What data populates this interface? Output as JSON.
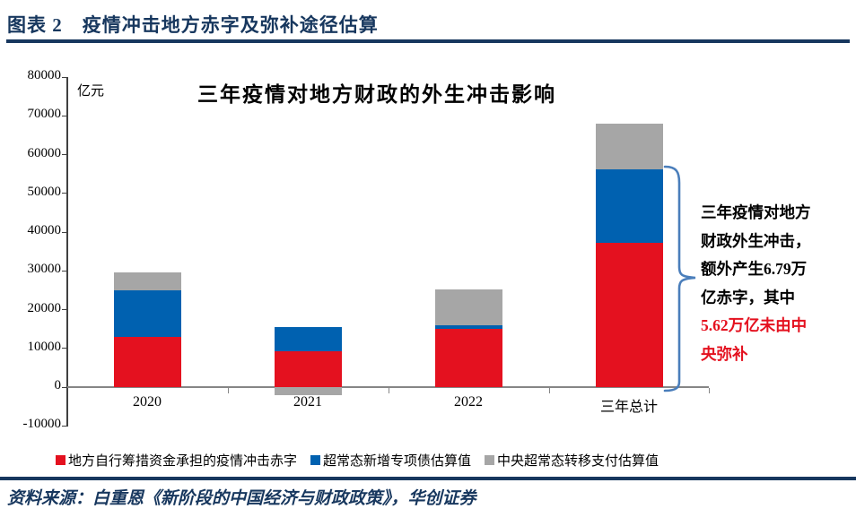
{
  "header": {
    "title": "图表 2　疫情冲击地方赤字及弥补途径估算"
  },
  "chart_data": {
    "type": "bar",
    "stacked": true,
    "title": "三年疫情对地方财政的外生冲击影响",
    "unit_label": "亿元",
    "categories": [
      "2020",
      "2021",
      "2022",
      "三年总计"
    ],
    "series": [
      {
        "name": "地方自行筹措资金承担的疫情冲击赤字",
        "color": "#e4111f",
        "values": [
          13000,
          9200,
          15000,
          37200
        ]
      },
      {
        "name": "超常态新增专项债估算值",
        "color": "#0061b0",
        "values": [
          12000,
          6300,
          1000,
          19000
        ]
      },
      {
        "name": "中央超常态转移支付估算值",
        "color": "#a6a6a6",
        "values": [
          4700,
          -2000,
          9100,
          11700
        ]
      }
    ],
    "ylim": [
      -10000,
      80000
    ],
    "y_tick_step": 10000,
    "y_tick_labels": [
      "80000",
      "70000",
      "60000",
      "50000",
      "40000",
      "30000",
      "20000",
      "10000",
      "0",
      "-10000"
    ],
    "grid": false,
    "legend_position": "bottom"
  },
  "annotation": {
    "black_lines": [
      "三年疫情对地方",
      "财政外生冲击，",
      "额外产生6.79万",
      "亿赤字，其中"
    ],
    "red_lines": [
      "5.62万亿未由中",
      "央弥补"
    ],
    "red_color": "#e4111f",
    "brace_color": "#4a7ebb"
  },
  "source": {
    "text": "资料来源：白重恩《新阶段的中国经济与财政政策》，华创证券"
  }
}
